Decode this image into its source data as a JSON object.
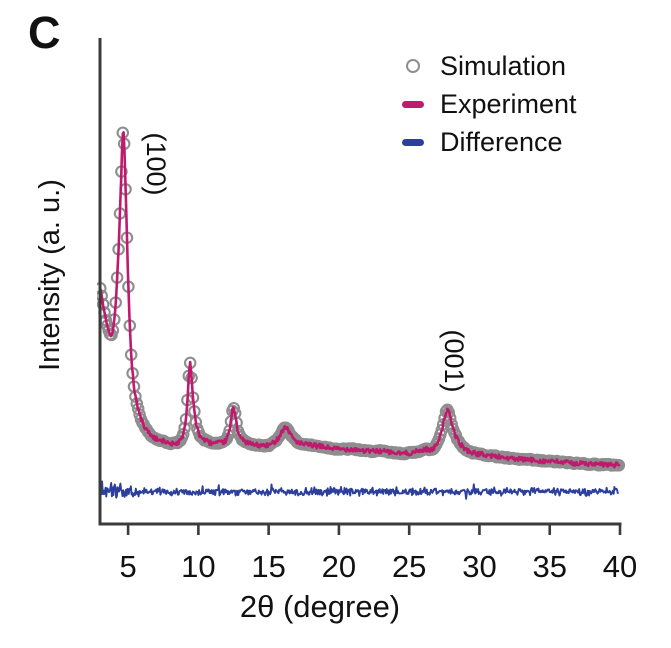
{
  "panel_label": "C",
  "colors": {
    "experiment": "#c01a6e",
    "simulation": "#8e8e8e",
    "difference": "#2c3f9d",
    "axis": "#3b3b3b",
    "text": "#111111"
  },
  "legend": {
    "items": [
      {
        "label": "Simulation",
        "marker": "open-circle"
      },
      {
        "label": "Experiment",
        "marker": "line"
      },
      {
        "label": "Difference",
        "marker": "line"
      }
    ]
  },
  "chart_data": {
    "type": "line",
    "title": "",
    "xlabel": "2θ (degree)",
    "ylabel": "Intensity (a. u.)",
    "xlim": [
      3.0,
      40.0
    ],
    "xticks": [
      5,
      10,
      15,
      20,
      25,
      30,
      35,
      40
    ],
    "yticks": [],
    "grid": false,
    "legend_position": "top-right",
    "annotations": [
      {
        "text": "(100)",
        "peak_2theta": 4.65
      },
      {
        "text": "(001)",
        "peak_2theta": 27.7
      }
    ],
    "peaks_2theta": [
      4.65,
      9.4,
      12.5,
      16.2,
      27.7
    ],
    "series": [
      {
        "name": "Simulation",
        "style": "open-circles",
        "source": "profile_points",
        "marker_step_deg": 0.1
      },
      {
        "name": "Experiment",
        "style": "solid-line",
        "source": "profile_points",
        "noise_amplitude": 0.006
      },
      {
        "name": "Difference",
        "style": "solid-line",
        "baseline_intensity": 0.082,
        "noise_amplitude": 0.01,
        "low_angle_noise_amplitude": 0.02
      }
    ],
    "profile_points": {
      "comment": "relative intensity, 1.0 = (100) peak maximum",
      "x": [
        3.0,
        3.3,
        3.55,
        3.85,
        4.1,
        4.3,
        4.45,
        4.65,
        4.85,
        5.0,
        5.2,
        5.45,
        5.8,
        6.2,
        6.8,
        7.5,
        8.2,
        8.8,
        9.1,
        9.25,
        9.4,
        9.6,
        9.8,
        10.1,
        10.6,
        11.2,
        11.9,
        12.2,
        12.5,
        12.8,
        13.1,
        13.6,
        14.2,
        15.0,
        15.6,
        16.2,
        16.7,
        17.2,
        18.0,
        19.0,
        20.0,
        21.0,
        22.0,
        23.0,
        24.0,
        25.0,
        25.7,
        26.2,
        26.7,
        27.1,
        27.4,
        27.7,
        28.1,
        28.5,
        29.0,
        29.6,
        30.5,
        31.5,
        32.5,
        33.5,
        34.5,
        35.5,
        36.5,
        37.5,
        38.5,
        39.5,
        40.0
      ],
      "y": [
        0.6,
        0.54,
        0.5,
        0.48,
        0.55,
        0.68,
        0.82,
        1.0,
        0.82,
        0.62,
        0.44,
        0.34,
        0.28,
        0.245,
        0.22,
        0.21,
        0.205,
        0.215,
        0.26,
        0.33,
        0.41,
        0.33,
        0.26,
        0.225,
        0.21,
        0.205,
        0.21,
        0.235,
        0.295,
        0.24,
        0.215,
        0.205,
        0.2,
        0.2,
        0.215,
        0.245,
        0.22,
        0.205,
        0.2,
        0.195,
        0.19,
        0.19,
        0.185,
        0.185,
        0.18,
        0.18,
        0.185,
        0.19,
        0.19,
        0.215,
        0.25,
        0.29,
        0.245,
        0.21,
        0.19,
        0.18,
        0.175,
        0.17,
        0.165,
        0.163,
        0.16,
        0.158,
        0.155,
        0.153,
        0.151,
        0.15,
        0.15
      ]
    }
  }
}
